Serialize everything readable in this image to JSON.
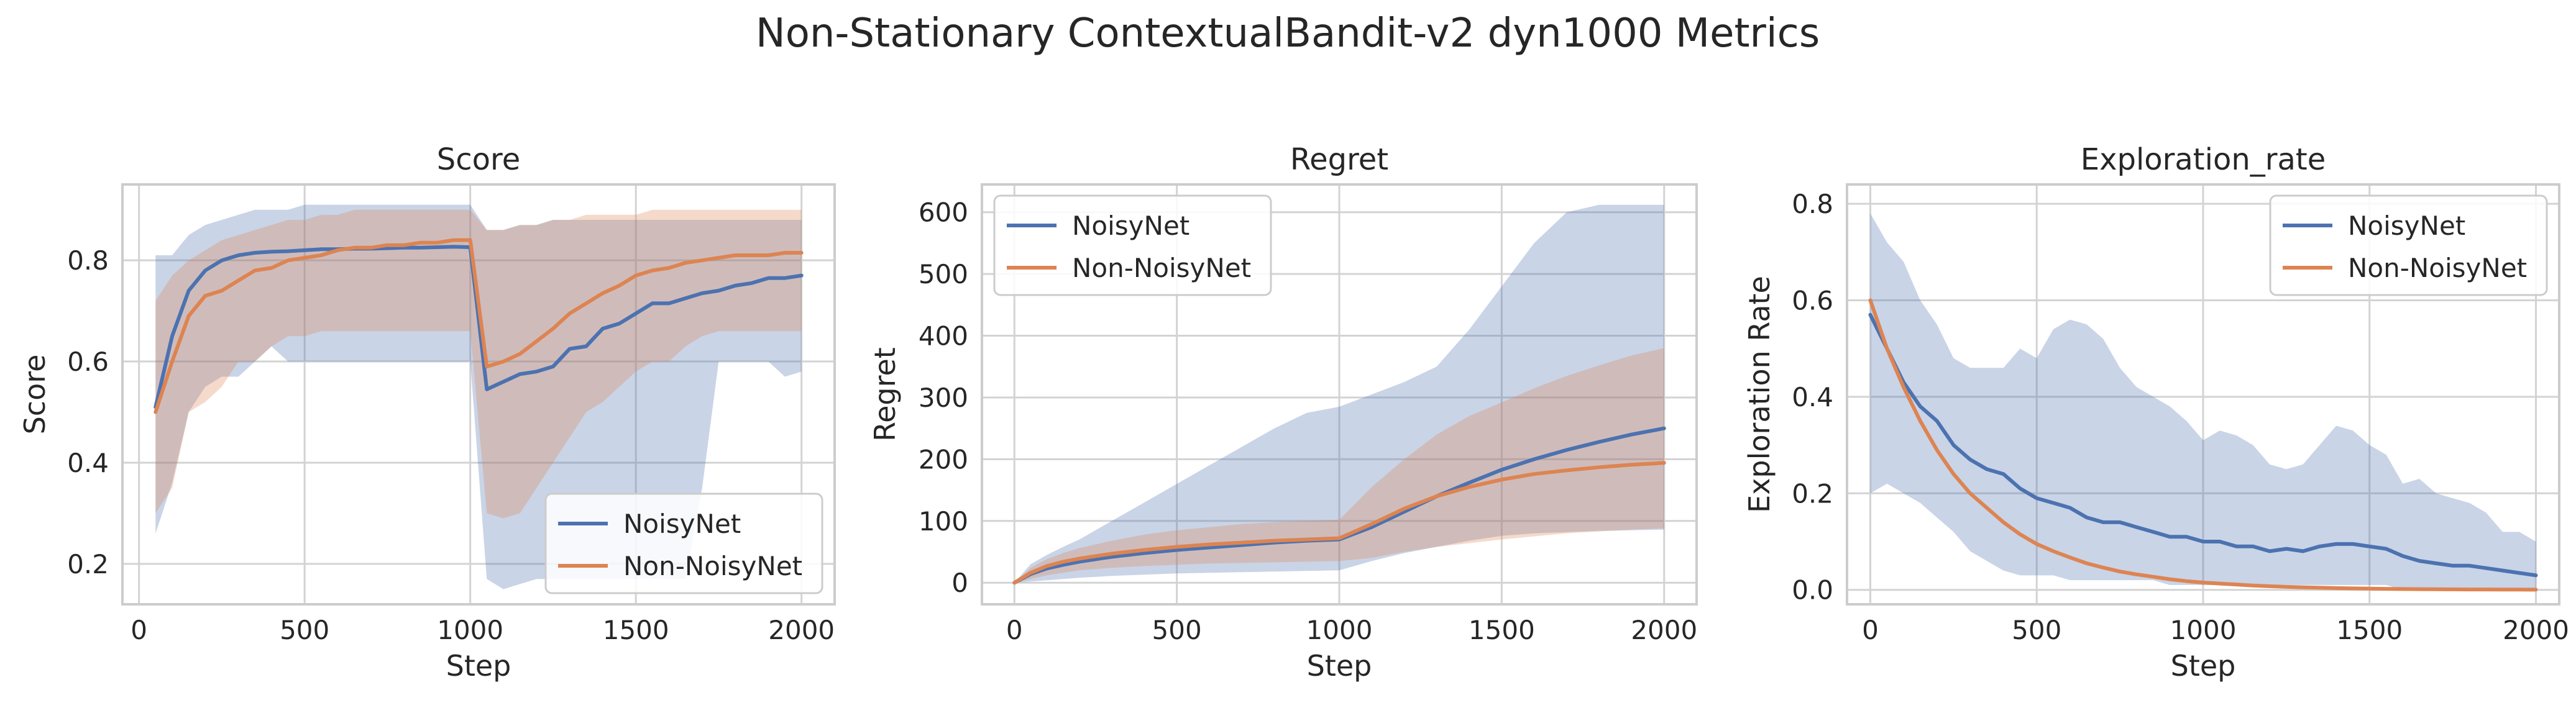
{
  "figure": {
    "title": "Non-Stationary ContextualBandit-v2 dyn1000 Metrics"
  },
  "colors": {
    "noisynet": "#4c72b0",
    "non_noisynet": "#dd8452",
    "grid": "#d3d3d3",
    "frame": "#cccccc",
    "text": "#262626"
  },
  "chart_data": [
    {
      "type": "line",
      "title": "Score",
      "xlabel": "Step",
      "ylabel": "Score",
      "xlim": [
        -50,
        2100
      ],
      "ylim": [
        0.12,
        0.95
      ],
      "xticks": [
        0,
        500,
        1000,
        1500,
        2000
      ],
      "yticks": [
        0.2,
        0.4,
        0.6,
        0.8
      ],
      "ytick_decimals": 1,
      "grid": true,
      "legend_location": "lower right",
      "series": [
        {
          "name": "NoisyNet",
          "color": "#4c72b0",
          "x": [
            50,
            100,
            150,
            200,
            250,
            300,
            350,
            400,
            450,
            500,
            550,
            600,
            650,
            700,
            750,
            800,
            850,
            900,
            950,
            1000,
            1050,
            1100,
            1150,
            1200,
            1250,
            1300,
            1350,
            1400,
            1450,
            1500,
            1550,
            1600,
            1650,
            1700,
            1750,
            1800,
            1850,
            1900,
            1950,
            2000
          ],
          "y": [
            0.51,
            0.65,
            0.74,
            0.78,
            0.8,
            0.81,
            0.815,
            0.817,
            0.818,
            0.82,
            0.822,
            0.822,
            0.823,
            0.823,
            0.824,
            0.825,
            0.825,
            0.826,
            0.827,
            0.826,
            0.545,
            0.56,
            0.575,
            0.58,
            0.59,
            0.625,
            0.63,
            0.665,
            0.675,
            0.695,
            0.715,
            0.715,
            0.725,
            0.735,
            0.74,
            0.75,
            0.755,
            0.765,
            0.765,
            0.77
          ],
          "lower": [
            0.26,
            0.36,
            0.5,
            0.55,
            0.57,
            0.57,
            0.6,
            0.63,
            0.6,
            0.6,
            0.6,
            0.6,
            0.6,
            0.6,
            0.6,
            0.6,
            0.6,
            0.6,
            0.6,
            0.6,
            0.17,
            0.15,
            0.16,
            0.17,
            0.17,
            0.17,
            0.17,
            0.17,
            0.17,
            0.17,
            0.17,
            0.17,
            0.17,
            0.35,
            0.6,
            0.6,
            0.6,
            0.6,
            0.57,
            0.58
          ],
          "upper": [
            0.81,
            0.81,
            0.85,
            0.87,
            0.88,
            0.89,
            0.9,
            0.9,
            0.9,
            0.91,
            0.91,
            0.91,
            0.91,
            0.91,
            0.91,
            0.91,
            0.91,
            0.91,
            0.91,
            0.91,
            0.86,
            0.86,
            0.87,
            0.87,
            0.88,
            0.88,
            0.88,
            0.88,
            0.88,
            0.88,
            0.88,
            0.88,
            0.88,
            0.88,
            0.88,
            0.88,
            0.88,
            0.88,
            0.88,
            0.88
          ]
        },
        {
          "name": "Non-NoisyNet",
          "color": "#dd8452",
          "x": [
            50,
            100,
            150,
            200,
            250,
            300,
            350,
            400,
            450,
            500,
            550,
            600,
            650,
            700,
            750,
            800,
            850,
            900,
            950,
            1000,
            1050,
            1100,
            1150,
            1200,
            1250,
            1300,
            1350,
            1400,
            1450,
            1500,
            1550,
            1600,
            1650,
            1700,
            1750,
            1800,
            1850,
            1900,
            1950,
            2000
          ],
          "y": [
            0.5,
            0.6,
            0.69,
            0.73,
            0.74,
            0.76,
            0.78,
            0.785,
            0.8,
            0.805,
            0.81,
            0.82,
            0.825,
            0.825,
            0.83,
            0.83,
            0.835,
            0.835,
            0.84,
            0.84,
            0.59,
            0.6,
            0.615,
            0.64,
            0.665,
            0.695,
            0.715,
            0.735,
            0.75,
            0.77,
            0.78,
            0.785,
            0.795,
            0.8,
            0.805,
            0.81,
            0.81,
            0.81,
            0.815,
            0.815
          ],
          "lower": [
            0.3,
            0.35,
            0.5,
            0.52,
            0.55,
            0.6,
            0.6,
            0.63,
            0.65,
            0.65,
            0.66,
            0.66,
            0.66,
            0.66,
            0.66,
            0.66,
            0.66,
            0.66,
            0.66,
            0.66,
            0.3,
            0.29,
            0.3,
            0.35,
            0.4,
            0.45,
            0.5,
            0.52,
            0.55,
            0.58,
            0.6,
            0.6,
            0.63,
            0.65,
            0.66,
            0.66,
            0.66,
            0.66,
            0.66,
            0.66
          ],
          "upper": [
            0.72,
            0.77,
            0.8,
            0.82,
            0.84,
            0.85,
            0.86,
            0.87,
            0.88,
            0.88,
            0.89,
            0.89,
            0.9,
            0.9,
            0.9,
            0.9,
            0.9,
            0.9,
            0.9,
            0.9,
            0.86,
            0.86,
            0.87,
            0.87,
            0.88,
            0.88,
            0.89,
            0.89,
            0.89,
            0.89,
            0.9,
            0.9,
            0.9,
            0.9,
            0.9,
            0.9,
            0.9,
            0.9,
            0.9,
            0.9
          ]
        }
      ]
    },
    {
      "type": "line",
      "title": "Regret",
      "xlabel": "Step",
      "ylabel": "Regret",
      "xlim": [
        -100,
        2100
      ],
      "ylim": [
        -35,
        645
      ],
      "xticks": [
        0,
        500,
        1000,
        1500,
        2000
      ],
      "yticks": [
        0,
        100,
        200,
        300,
        400,
        500,
        600
      ],
      "ytick_decimals": 0,
      "grid": true,
      "legend_location": "upper left",
      "series": [
        {
          "name": "NoisyNet",
          "color": "#4c72b0",
          "x": [
            0,
            50,
            100,
            150,
            200,
            300,
            400,
            500,
            600,
            700,
            800,
            900,
            1000,
            1100,
            1200,
            1300,
            1400,
            1500,
            1600,
            1700,
            1800,
            1900,
            2000
          ],
          "y": [
            0,
            14,
            23,
            29,
            34,
            42,
            48,
            53,
            57,
            61,
            65,
            68,
            70,
            90,
            115,
            140,
            162,
            183,
            200,
            215,
            228,
            240,
            250
          ],
          "lower": [
            0,
            2,
            4,
            6,
            8,
            11,
            13,
            15,
            16,
            17,
            18,
            19,
            20,
            35,
            48,
            58,
            68,
            76,
            80,
            82,
            84,
            85,
            86
          ],
          "upper": [
            0,
            30,
            45,
            58,
            70,
            100,
            130,
            160,
            190,
            220,
            250,
            275,
            285,
            305,
            325,
            350,
            410,
            480,
            550,
            600,
            612,
            612,
            612
          ]
        },
        {
          "name": "Non-NoisyNet",
          "color": "#dd8452",
          "x": [
            0,
            50,
            100,
            150,
            200,
            300,
            400,
            500,
            600,
            700,
            800,
            900,
            1000,
            1100,
            1200,
            1300,
            1400,
            1500,
            1600,
            1700,
            1800,
            1900,
            2000
          ],
          "y": [
            0,
            16,
            27,
            34,
            39,
            47,
            53,
            58,
            62,
            65,
            68,
            70,
            72,
            95,
            120,
            140,
            155,
            167,
            176,
            182,
            187,
            191,
            194
          ],
          "lower": [
            0,
            6,
            12,
            16,
            20,
            24,
            27,
            29,
            31,
            32,
            33,
            34,
            35,
            40,
            50,
            58,
            64,
            70,
            75,
            80,
            83,
            86,
            88
          ],
          "upper": [
            0,
            24,
            38,
            48,
            56,
            68,
            78,
            85,
            90,
            95,
            98,
            100,
            102,
            155,
            200,
            240,
            270,
            292,
            315,
            335,
            352,
            368,
            380
          ]
        }
      ]
    },
    {
      "type": "line",
      "title": "Exploration_rate",
      "xlabel": "Step",
      "ylabel": "Exploration Rate",
      "xlim": [
        -70,
        2070
      ],
      "ylim": [
        -0.03,
        0.84
      ],
      "xticks": [
        0,
        500,
        1000,
        1500,
        2000
      ],
      "yticks": [
        0.0,
        0.2,
        0.4,
        0.6,
        0.8
      ],
      "ytick_decimals": 1,
      "grid": true,
      "legend_location": "upper right",
      "series": [
        {
          "name": "NoisyNet",
          "color": "#4c72b0",
          "x": [
            0,
            50,
            100,
            150,
            200,
            250,
            300,
            350,
            400,
            450,
            500,
            550,
            600,
            650,
            700,
            750,
            800,
            850,
            900,
            950,
            1000,
            1050,
            1100,
            1150,
            1200,
            1250,
            1300,
            1350,
            1400,
            1450,
            1500,
            1550,
            1600,
            1650,
            1700,
            1750,
            1800,
            1850,
            1900,
            1950,
            2000
          ],
          "y": [
            0.57,
            0.5,
            0.43,
            0.38,
            0.35,
            0.3,
            0.27,
            0.25,
            0.24,
            0.21,
            0.19,
            0.18,
            0.17,
            0.15,
            0.14,
            0.14,
            0.13,
            0.12,
            0.11,
            0.11,
            0.1,
            0.1,
            0.09,
            0.09,
            0.08,
            0.085,
            0.08,
            0.09,
            0.095,
            0.095,
            0.09,
            0.085,
            0.07,
            0.06,
            0.055,
            0.05,
            0.05,
            0.045,
            0.04,
            0.035,
            0.03
          ],
          "lower": [
            0.2,
            0.22,
            0.2,
            0.18,
            0.15,
            0.12,
            0.08,
            0.06,
            0.04,
            0.03,
            0.03,
            0.03,
            0.02,
            0.02,
            0.02,
            0.02,
            0.02,
            0.02,
            0.01,
            0.01,
            0.01,
            0.01,
            0.01,
            0.01,
            0.01,
            0.01,
            0.01,
            0.01,
            0.01,
            0.01,
            0.01,
            0.01,
            0.0,
            0.0,
            0.0,
            0.0,
            0.0,
            0.0,
            0.0,
            0.0,
            0.0
          ],
          "upper": [
            0.78,
            0.72,
            0.68,
            0.6,
            0.55,
            0.48,
            0.46,
            0.46,
            0.46,
            0.5,
            0.48,
            0.54,
            0.56,
            0.55,
            0.52,
            0.46,
            0.42,
            0.4,
            0.38,
            0.35,
            0.31,
            0.33,
            0.32,
            0.3,
            0.26,
            0.25,
            0.26,
            0.3,
            0.34,
            0.33,
            0.3,
            0.28,
            0.22,
            0.23,
            0.2,
            0.19,
            0.18,
            0.16,
            0.12,
            0.12,
            0.1
          ]
        },
        {
          "name": "Non-NoisyNet",
          "color": "#dd8452",
          "x": [
            0,
            50,
            100,
            150,
            200,
            250,
            300,
            350,
            400,
            450,
            500,
            550,
            600,
            650,
            700,
            750,
            800,
            850,
            900,
            950,
            1000,
            1050,
            1100,
            1150,
            1200,
            1250,
            1300,
            1350,
            1400,
            1450,
            1500,
            1550,
            1600,
            1650,
            1700,
            1750,
            1800,
            1850,
            1900,
            1950,
            2000
          ],
          "y": [
            0.6,
            0.5,
            0.42,
            0.35,
            0.29,
            0.24,
            0.2,
            0.17,
            0.14,
            0.115,
            0.095,
            0.08,
            0.067,
            0.055,
            0.046,
            0.038,
            0.032,
            0.027,
            0.022,
            0.018,
            0.015,
            0.013,
            0.011,
            0.009,
            0.0075,
            0.0062,
            0.0052,
            0.0043,
            0.0036,
            0.003,
            0.0025,
            0.002,
            0.0017,
            0.0014,
            0.0012,
            0.001,
            0.0008,
            0.0007,
            0.0006,
            0.0005,
            0.0004
          ],
          "lower": [],
          "upper": []
        }
      ]
    }
  ]
}
